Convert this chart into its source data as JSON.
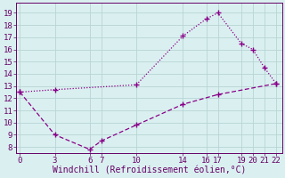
{
  "line1_x": [
    0,
    3,
    10,
    14,
    16,
    17,
    19,
    20,
    21,
    22
  ],
  "line1_y": [
    12.5,
    12.7,
    13.1,
    17.1,
    18.5,
    19.0,
    16.5,
    16.0,
    14.5,
    13.2
  ],
  "line2_x": [
    0,
    3,
    6,
    7,
    10,
    14,
    17,
    22
  ],
  "line2_y": [
    12.5,
    9.0,
    7.8,
    8.5,
    9.8,
    11.5,
    12.3,
    13.2
  ],
  "line_color": "#880088",
  "bg_color": "#daf0f0",
  "grid_color": "#b8d4d4",
  "xlabel": "Windchill (Refroidissement éolien,°C)",
  "xticks": [
    0,
    3,
    6,
    7,
    10,
    14,
    16,
    17,
    19,
    20,
    21,
    22
  ],
  "yticks": [
    8,
    9,
    10,
    11,
    12,
    13,
    14,
    15,
    16,
    17,
    18,
    19
  ],
  "xlim": [
    -0.3,
    22.5
  ],
  "ylim": [
    7.5,
    19.8
  ],
  "tick_color": "#660066",
  "font_size": 6.5,
  "label_font_size": 7.0
}
